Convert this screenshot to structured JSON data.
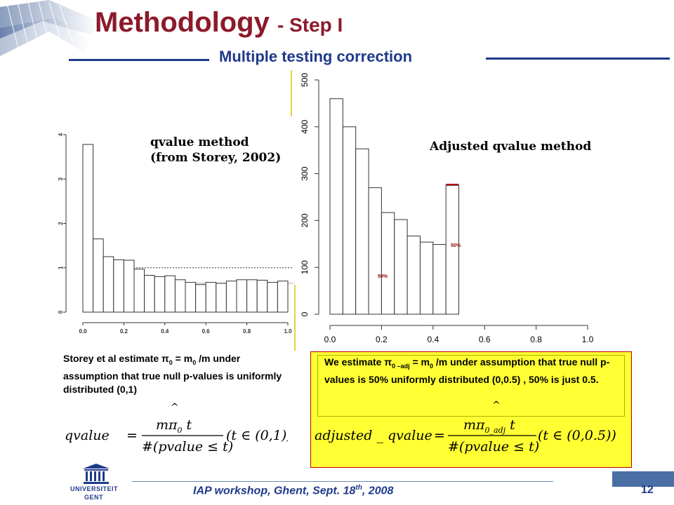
{
  "header": {
    "title_main": "Methodology",
    "title_step": "- Step I",
    "subtitle": "Multiple testing correction"
  },
  "left_plot": {
    "title_line1": "qvalue method",
    "title_line2": "(from Storey, 2002)",
    "y_ticks": [
      "0",
      "1",
      "2",
      "3",
      "4"
    ],
    "x_ticks": [
      "0.0",
      "0.2",
      "0.4",
      "0.6",
      "0.8",
      "1.0"
    ]
  },
  "right_plot": {
    "title": "Adjusted qvalue method",
    "y_ticks": [
      "0",
      "100",
      "200",
      "300",
      "400",
      "500"
    ],
    "x_ticks": [
      "0.0",
      "0.2",
      "0.4",
      "0.6",
      "0.8",
      "1.0"
    ],
    "annotation_low": "50%",
    "annotation_high": "50%"
  },
  "chart_data": [
    {
      "type": "bar",
      "title": "qvalue method (from Storey, 2002)",
      "x": [
        0.025,
        0.075,
        0.125,
        0.175,
        0.225,
        0.275,
        0.325,
        0.375,
        0.425,
        0.475,
        0.525,
        0.575,
        0.625,
        0.675,
        0.725,
        0.775,
        0.825,
        0.875,
        0.925,
        0.975
      ],
      "values": [
        3.78,
        1.65,
        1.25,
        1.18,
        1.17,
        0.97,
        0.83,
        0.8,
        0.82,
        0.73,
        0.67,
        0.62,
        0.67,
        0.65,
        0.7,
        0.73,
        0.73,
        0.72,
        0.67,
        0.7
      ],
      "ylim": [
        0,
        4
      ],
      "xlim": [
        0,
        1
      ],
      "reference_line": 1.0,
      "estimate_line": 0.65
    },
    {
      "type": "bar",
      "title": "Adjusted qvalue method",
      "x": [
        0.025,
        0.075,
        0.125,
        0.175,
        0.225,
        0.275,
        0.325,
        0.375,
        0.425,
        0.475
      ],
      "values": [
        460,
        400,
        353,
        270,
        217,
        202,
        167,
        154,
        149,
        275
      ],
      "ylim": [
        0,
        500
      ],
      "xlim": [
        0,
        1
      ],
      "estimate_line": 140
    }
  ],
  "storey_text": {
    "before": "Storey et al estimate π",
    "sub0": "0",
    "middle": " = m",
    "sub1": "0",
    "after": " /m under assumption that true null p-values is uniformly distributed (0,1)"
  },
  "our_text": {
    "before": "We estimate π",
    "sub0": "0 –adj",
    "middle": " = m",
    "sub1": "0",
    "after": " /m under assumption that true null p-values is 50% uniformly distributed (0,0.5) , 50% is just 0.5."
  },
  "hat": "^",
  "formula_left": {
    "lhs": "qvalue",
    "numerator": "mπ",
    "num_sub": "0",
    "num_tail": " t",
    "denominator": "#(pvalue ≤ t)",
    "condition": "(t ∈ (0,1))"
  },
  "formula_right": {
    "lhs": "adjusted _ qvalue",
    "numerator": "mπ",
    "num_sub": "0_adj",
    "num_tail": " t",
    "denominator": "#(pvalue ≤ t)",
    "condition": "(t ∈ (0,0.5))"
  },
  "footer": {
    "workshop_before": "IAP workshop, Ghent, Sept. 18",
    "workshop_sup": "th",
    "workshop_after": ", 2008",
    "page_number": "12",
    "logo_line1": "UNIVERSITEIT",
    "logo_line2": "GENT"
  },
  "colors": {
    "title": "#8b1a2b",
    "subtitle": "#1f3a8a",
    "highlight": "#ffff33",
    "reference_line": "#ff6666"
  }
}
